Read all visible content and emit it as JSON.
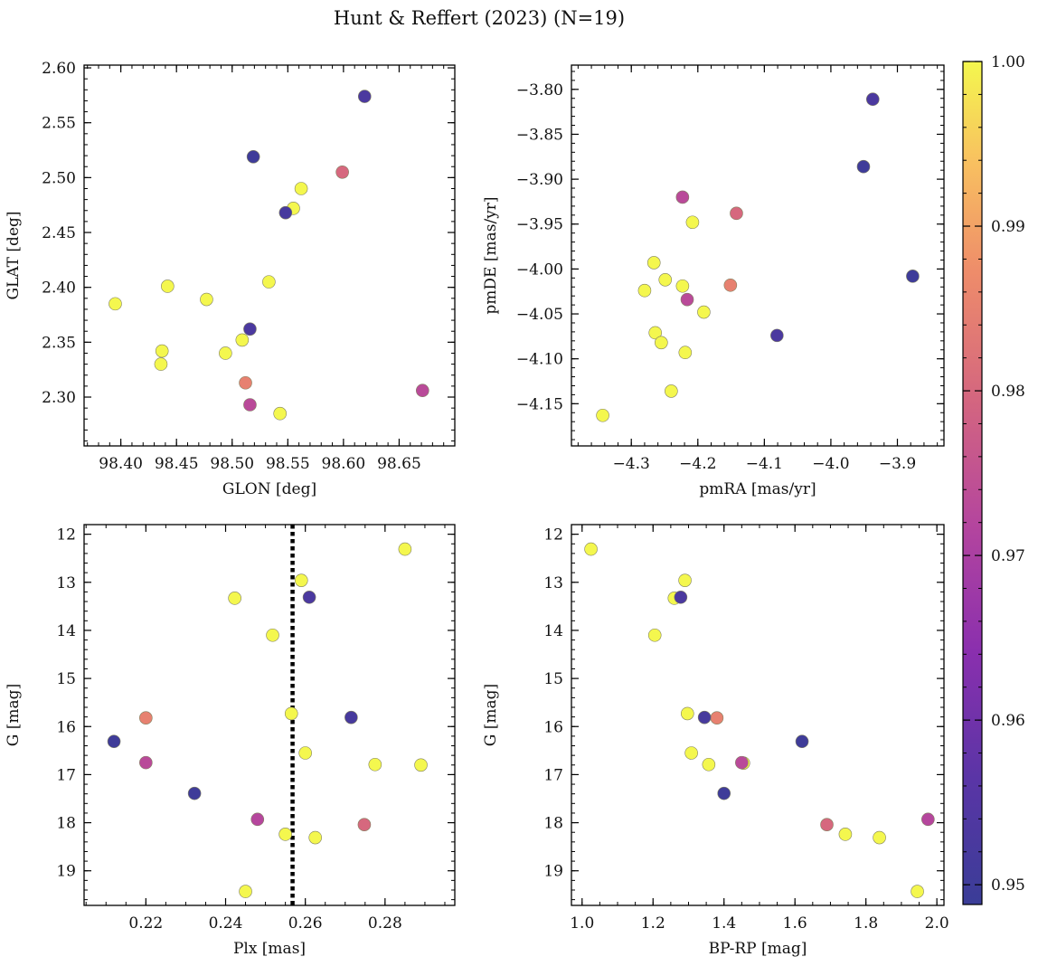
{
  "title": "Hunt & Reffert (2023) (N=19)",
  "colorbar": {
    "range": [
      0.9488,
      1.0
    ],
    "ticks": [
      0.95,
      0.96,
      0.97,
      0.98,
      0.99,
      1.0
    ],
    "tick_labels": [
      "0.95",
      "0.96",
      "0.97",
      "0.98",
      "0.99",
      "1.00"
    ],
    "colormap": "plasma"
  },
  "chart_data": [
    {
      "type": "scatter",
      "id": "p1",
      "xlabel": "GLON [deg]",
      "ylabel": "GLAT [deg]",
      "xlim": [
        98.367,
        98.7
      ],
      "ylim": [
        2.2555,
        2.6025
      ],
      "xticks": [
        98.4,
        98.45,
        98.5,
        98.55,
        98.6,
        98.65
      ],
      "xtick_labels": [
        "98.40",
        "98.45",
        "98.50",
        "98.55",
        "98.60",
        "98.65"
      ],
      "yticks": [
        2.3,
        2.35,
        2.4,
        2.45,
        2.5,
        2.55,
        2.6
      ],
      "ytick_labels": [
        "2.30",
        "2.35",
        "2.40",
        "2.45",
        "2.50",
        "2.55",
        "2.60"
      ],
      "xminor": 0.01,
      "yminor": 0.01,
      "points": [
        {
          "x": 98.619,
          "y": 2.574,
          "c": 0.953
        },
        {
          "x": 98.519,
          "y": 2.519,
          "c": 0.95
        },
        {
          "x": 98.599,
          "y": 2.505,
          "c": 0.98
        },
        {
          "x": 98.562,
          "y": 2.49,
          "c": 1.0
        },
        {
          "x": 98.555,
          "y": 2.472,
          "c": 1.0
        },
        {
          "x": 98.548,
          "y": 2.468,
          "c": 0.952
        },
        {
          "x": 98.395,
          "y": 2.385,
          "c": 1.0
        },
        {
          "x": 98.442,
          "y": 2.401,
          "c": 1.0
        },
        {
          "x": 98.477,
          "y": 2.389,
          "c": 1.0
        },
        {
          "x": 98.533,
          "y": 2.405,
          "c": 1.0
        },
        {
          "x": 98.516,
          "y": 2.362,
          "c": 0.953
        },
        {
          "x": 98.509,
          "y": 2.352,
          "c": 1.0
        },
        {
          "x": 98.437,
          "y": 2.342,
          "c": 1.0
        },
        {
          "x": 98.494,
          "y": 2.34,
          "c": 1.0
        },
        {
          "x": 98.436,
          "y": 2.33,
          "c": 1.0
        },
        {
          "x": 98.512,
          "y": 2.313,
          "c": 0.985
        },
        {
          "x": 98.516,
          "y": 2.293,
          "c": 0.973
        },
        {
          "x": 98.543,
          "y": 2.285,
          "c": 1.0
        },
        {
          "x": 98.671,
          "y": 2.306,
          "c": 0.973
        }
      ]
    },
    {
      "type": "scatter",
      "id": "p2",
      "xlabel": "pmRA [mas/yr]",
      "ylabel": "pmDE [mas/yr]",
      "xlim": [
        -4.39,
        -3.83
      ],
      "ylim": [
        -4.197,
        -3.773
      ],
      "xticks": [
        -4.3,
        -4.2,
        -4.1,
        -4.0,
        -3.9
      ],
      "xtick_labels": [
        "−4.3",
        "−4.2",
        "−4.1",
        "−4.0",
        "−3.9"
      ],
      "yticks": [
        -4.15,
        -4.1,
        -4.05,
        -4.0,
        -3.95,
        -3.9,
        -3.85,
        -3.8
      ],
      "ytick_labels": [
        "−4.15",
        "−4.10",
        "−4.05",
        "−4.00",
        "−3.95",
        "−3.90",
        "−3.85",
        "−3.80"
      ],
      "xminor": 0.02,
      "yminor": 0.01,
      "points": [
        {
          "x": -3.937,
          "y": -3.811,
          "c": 0.953
        },
        {
          "x": -3.951,
          "y": -3.886,
          "c": 0.95
        },
        {
          "x": -4.223,
          "y": -3.92,
          "c": 0.973
        },
        {
          "x": -4.142,
          "y": -3.938,
          "c": 0.98
        },
        {
          "x": -4.208,
          "y": -3.948,
          "c": 1.0
        },
        {
          "x": -4.266,
          "y": -3.993,
          "c": 1.0
        },
        {
          "x": -4.249,
          "y": -4.012,
          "c": 1.0
        },
        {
          "x": -4.223,
          "y": -4.019,
          "c": 1.0
        },
        {
          "x": -4.28,
          "y": -4.024,
          "c": 1.0
        },
        {
          "x": -4.151,
          "y": -4.018,
          "c": 0.985
        },
        {
          "x": -4.216,
          "y": -4.034,
          "c": 0.973
        },
        {
          "x": -3.877,
          "y": -4.008,
          "c": 0.95
        },
        {
          "x": -4.191,
          "y": -4.048,
          "c": 1.0
        },
        {
          "x": -4.264,
          "y": -4.071,
          "c": 1.0
        },
        {
          "x": -4.255,
          "y": -4.082,
          "c": 1.0
        },
        {
          "x": -4.081,
          "y": -4.074,
          "c": 0.953
        },
        {
          "x": -4.219,
          "y": -4.093,
          "c": 1.0
        },
        {
          "x": -4.24,
          "y": -4.136,
          "c": 1.0
        },
        {
          "x": -4.343,
          "y": -4.163,
          "c": 1.0
        }
      ]
    },
    {
      "type": "scatter",
      "id": "p3",
      "xlabel": "Plx [mas]",
      "ylabel": "G [mag]",
      "xlim": [
        0.2045,
        0.2975
      ],
      "ylim": [
        19.72,
        11.8
      ],
      "xticks": [
        0.22,
        0.24,
        0.26,
        0.28
      ],
      "xtick_labels": [
        "0.22",
        "0.24",
        "0.26",
        "0.28"
      ],
      "yticks": [
        12,
        13,
        14,
        15,
        16,
        17,
        18,
        19
      ],
      "ytick_labels": [
        "12",
        "13",
        "14",
        "15",
        "16",
        "17",
        "18",
        "19"
      ],
      "xminor": 0.005,
      "yminor": 0.2,
      "vline": {
        "x": 0.2568,
        "style": "dotted"
      },
      "points": [
        {
          "x": 0.285,
          "y": 12.31,
          "c": 1.0
        },
        {
          "x": 0.259,
          "y": 12.96,
          "c": 1.0
        },
        {
          "x": 0.261,
          "y": 13.31,
          "c": 0.953
        },
        {
          "x": 0.2423,
          "y": 13.33,
          "c": 1.0
        },
        {
          "x": 0.2518,
          "y": 14.1,
          "c": 1.0
        },
        {
          "x": 0.2565,
          "y": 15.73,
          "c": 1.0
        },
        {
          "x": 0.22,
          "y": 15.82,
          "c": 0.985
        },
        {
          "x": 0.2715,
          "y": 15.81,
          "c": 0.952
        },
        {
          "x": 0.212,
          "y": 16.31,
          "c": 0.95
        },
        {
          "x": 0.26,
          "y": 16.55,
          "c": 1.0
        },
        {
          "x": 0.22,
          "y": 16.75,
          "c": 0.973
        },
        {
          "x": 0.2775,
          "y": 16.79,
          "c": 1.0
        },
        {
          "x": 0.289,
          "y": 16.8,
          "c": 1.0
        },
        {
          "x": 0.2322,
          "y": 17.39,
          "c": 0.95
        },
        {
          "x": 0.248,
          "y": 17.93,
          "c": 0.972
        },
        {
          "x": 0.2748,
          "y": 18.04,
          "c": 0.98
        },
        {
          "x": 0.255,
          "y": 18.24,
          "c": 1.0
        },
        {
          "x": 0.2625,
          "y": 18.31,
          "c": 1.0
        },
        {
          "x": 0.245,
          "y": 19.43,
          "c": 1.0
        }
      ]
    },
    {
      "type": "scatter",
      "id": "p4",
      "xlabel": "BP-RP [mag]",
      "ylabel": "G [mag]",
      "xlim": [
        0.97,
        2.02
      ],
      "ylim": [
        19.72,
        11.8
      ],
      "xticks": [
        1.0,
        1.2,
        1.4,
        1.6,
        1.8,
        2.0
      ],
      "xtick_labels": [
        "1.0",
        "1.2",
        "1.4",
        "1.6",
        "1.8",
        "2.0"
      ],
      "yticks": [
        12,
        13,
        14,
        15,
        16,
        17,
        18,
        19
      ],
      "ytick_labels": [
        "12",
        "13",
        "14",
        "15",
        "16",
        "17",
        "18",
        "19"
      ],
      "xminor": 0.05,
      "yminor": 0.2,
      "points": [
        {
          "x": 1.025,
          "y": 12.31,
          "c": 1.0
        },
        {
          "x": 1.29,
          "y": 12.96,
          "c": 1.0
        },
        {
          "x": 1.278,
          "y": 13.31,
          "c": 0.953
        },
        {
          "x": 1.26,
          "y": 13.33,
          "c": 1.0
        },
        {
          "x": 1.205,
          "y": 14.1,
          "c": 1.0
        },
        {
          "x": 1.297,
          "y": 15.73,
          "c": 1.0
        },
        {
          "x": 1.345,
          "y": 15.81,
          "c": 0.952
        },
        {
          "x": 1.38,
          "y": 15.82,
          "c": 0.985
        },
        {
          "x": 1.62,
          "y": 16.31,
          "c": 0.95
        },
        {
          "x": 1.308,
          "y": 16.55,
          "c": 1.0
        },
        {
          "x": 1.45,
          "y": 16.75,
          "c": 0.973
        },
        {
          "x": 1.357,
          "y": 16.79,
          "c": 1.0
        },
        {
          "x": 1.455,
          "y": 16.76,
          "c": 1.0
        },
        {
          "x": 1.4,
          "y": 17.39,
          "c": 0.95
        },
        {
          "x": 1.975,
          "y": 17.93,
          "c": 0.972
        },
        {
          "x": 1.69,
          "y": 18.04,
          "c": 0.98
        },
        {
          "x": 1.742,
          "y": 18.24,
          "c": 1.0
        },
        {
          "x": 1.838,
          "y": 18.31,
          "c": 1.0
        },
        {
          "x": 1.945,
          "y": 19.43,
          "c": 1.0
        }
      ]
    }
  ]
}
